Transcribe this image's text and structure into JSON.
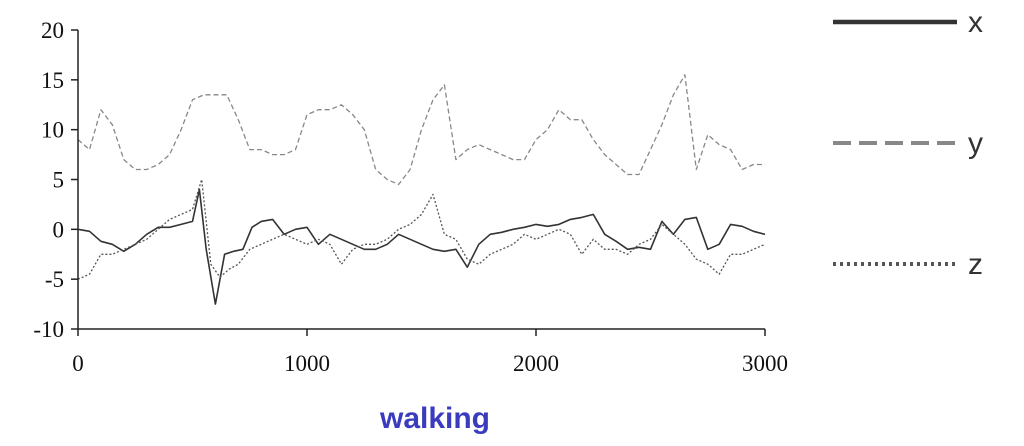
{
  "chart_data": {
    "type": "line",
    "title": "",
    "xlabel": "walking",
    "ylabel": "",
    "xlim": [
      0,
      3000
    ],
    "ylim": [
      -10,
      20
    ],
    "xticks": [
      0,
      1000,
      2000,
      3000
    ],
    "yticks": [
      -10,
      -5,
      0,
      5,
      10,
      15,
      20
    ],
    "grid": false,
    "legend_position": "right",
    "series": [
      {
        "name": "x",
        "style": "solid",
        "color": "#333333",
        "x": [
          0,
          50,
          100,
          150,
          200,
          250,
          300,
          350,
          400,
          450,
          500,
          530,
          560,
          600,
          640,
          680,
          720,
          760,
          800,
          850,
          900,
          950,
          1000,
          1050,
          1100,
          1150,
          1200,
          1250,
          1300,
          1350,
          1400,
          1450,
          1500,
          1550,
          1600,
          1650,
          1700,
          1750,
          1800,
          1850,
          1900,
          1950,
          2000,
          2050,
          2100,
          2150,
          2200,
          2250,
          2300,
          2350,
          2400,
          2450,
          2500,
          2550,
          2600,
          2650,
          2700,
          2750,
          2800,
          2850,
          2900,
          2950,
          3000
        ],
        "y": [
          0,
          -0.2,
          -1.2,
          -1.5,
          -2.2,
          -1.5,
          -0.5,
          0.2,
          0.2,
          0.5,
          0.8,
          4,
          -2,
          -7.5,
          -2.5,
          -2.2,
          -2,
          0.2,
          0.8,
          1,
          -0.5,
          0,
          0.2,
          -1.5,
          -0.5,
          -1,
          -1.5,
          -2,
          -2,
          -1.5,
          -0.5,
          -1,
          -1.5,
          -2,
          -2.2,
          -2,
          -3.8,
          -1.5,
          -0.5,
          -0.3,
          0,
          0.2,
          0.5,
          0.3,
          0.5,
          1,
          1.2,
          1.5,
          -0.5,
          -1.2,
          -2,
          -1.8,
          -2,
          0.8,
          -0.5,
          1,
          1.2,
          -2,
          -1.5,
          0.5,
          0.3,
          -0.2,
          -0.5
        ]
      },
      {
        "name": "y",
        "style": "dashed",
        "color": "#888888",
        "x": [
          0,
          50,
          100,
          150,
          200,
          250,
          300,
          350,
          400,
          450,
          500,
          550,
          600,
          650,
          700,
          750,
          800,
          850,
          900,
          950,
          1000,
          1050,
          1100,
          1150,
          1200,
          1250,
          1300,
          1350,
          1400,
          1450,
          1500,
          1550,
          1600,
          1650,
          1700,
          1750,
          1800,
          1850,
          1900,
          1950,
          2000,
          2050,
          2100,
          2150,
          2200,
          2250,
          2300,
          2350,
          2400,
          2450,
          2500,
          2550,
          2600,
          2650,
          2700,
          2750,
          2800,
          2850,
          2900,
          2950,
          3000
        ],
        "y": [
          9,
          8,
          12,
          10.5,
          7,
          6,
          6,
          6.5,
          7.5,
          10,
          13,
          13.5,
          13.5,
          13.5,
          11,
          8,
          8,
          7.5,
          7.5,
          8,
          11.5,
          12,
          12,
          12.5,
          11.5,
          10,
          6,
          5,
          4.5,
          6,
          10,
          13,
          14.5,
          7,
          8,
          8.5,
          8,
          7.5,
          7,
          7,
          9,
          10,
          12,
          11,
          11,
          9,
          7.5,
          6.5,
          5.5,
          5.5,
          8,
          10.5,
          13.5,
          15.5,
          6,
          9.5,
          8.5,
          8,
          6,
          6.5,
          6.5
        ]
      },
      {
        "name": "z",
        "style": "dotted",
        "color": "#555555",
        "x": [
          0,
          50,
          100,
          150,
          200,
          250,
          300,
          350,
          400,
          450,
          500,
          540,
          580,
          620,
          660,
          700,
          750,
          800,
          850,
          900,
          950,
          1000,
          1050,
          1100,
          1150,
          1200,
          1250,
          1300,
          1350,
          1400,
          1450,
          1500,
          1550,
          1600,
          1650,
          1700,
          1750,
          1800,
          1850,
          1900,
          1950,
          2000,
          2050,
          2100,
          2150,
          2200,
          2250,
          2300,
          2350,
          2400,
          2450,
          2500,
          2550,
          2600,
          2650,
          2700,
          2750,
          2800,
          2850,
          2900,
          2950,
          3000
        ],
        "y": [
          -5,
          -4.5,
          -2.5,
          -2.5,
          -2,
          -1.5,
          -1,
          0,
          1,
          1.5,
          2,
          5,
          -3.5,
          -4.8,
          -4,
          -3.5,
          -2,
          -1.5,
          -1,
          -0.5,
          -1,
          -1.5,
          -1,
          -1.5,
          -3.5,
          -2,
          -1.5,
          -1.5,
          -1,
          0,
          0.5,
          1.5,
          3.5,
          -0.5,
          -1,
          -3,
          -3.5,
          -2.5,
          -2,
          -1.5,
          -0.5,
          -1,
          -0.5,
          0,
          -0.5,
          -2.5,
          -1,
          -2,
          -2,
          -2.5,
          -1.5,
          -1,
          0.5,
          -0.5,
          -1.5,
          -3,
          -3.5,
          -4.5,
          -2.5,
          -2.5,
          -2,
          -1.5
        ]
      }
    ]
  }
}
